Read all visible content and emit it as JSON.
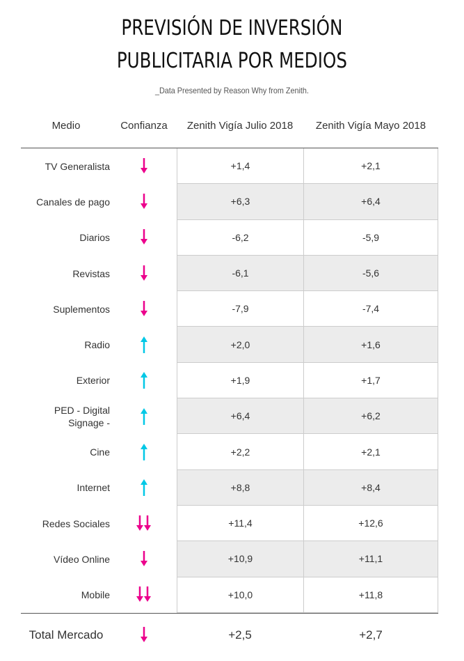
{
  "header": {
    "title_line1": "PREVISIÓN DE INVERSIÓN",
    "title_line2": "PUBLICITARIA POR MEDIOS",
    "subtitle": "_Data Presented by Reason Why from Zenith."
  },
  "columns": {
    "medio": "Medio",
    "confianza": "Confianza",
    "julio": "Zenith Vigía Julio 2018",
    "mayo": "Zenith Vigía Mayo 2018"
  },
  "colors": {
    "down": "#ec008c",
    "up": "#00c8e6"
  },
  "rows": [
    {
      "medio": "TV Generalista",
      "confianza": "down-arrow-icon",
      "julio": "+1,4",
      "mayo": "+2,1"
    },
    {
      "medio": "Canales de pago",
      "confianza": "down-arrow-icon",
      "julio": "+6,3",
      "mayo": "+6,4"
    },
    {
      "medio": "Diarios",
      "confianza": "down-arrow-icon",
      "julio": "-6,2",
      "mayo": "-5,9"
    },
    {
      "medio": "Revistas",
      "confianza": "down-arrow-icon",
      "julio": "-6,1",
      "mayo": "-5,6"
    },
    {
      "medio": "Suplementos",
      "confianza": "down-arrow-icon",
      "julio": "-7,9",
      "mayo": "-7,4"
    },
    {
      "medio": "Radio",
      "confianza": "up-arrow-icon",
      "julio": "+2,0",
      "mayo": "+1,6"
    },
    {
      "medio": "Exterior",
      "confianza": "up-arrow-icon",
      "julio": "+1,9",
      "mayo": "+1,7"
    },
    {
      "medio": "PED - Digital Signage -",
      "confianza": "up-arrow-icon",
      "julio": "+6,4",
      "mayo": "+6,2"
    },
    {
      "medio": "Cine",
      "confianza": "up-arrow-icon",
      "julio": "+2,2",
      "mayo": "+2,1"
    },
    {
      "medio": "Internet",
      "confianza": "up-arrow-icon",
      "julio": "+8,8",
      "mayo": "+8,4"
    },
    {
      "medio": "Redes Sociales",
      "confianza": "double-down-arrow-icon",
      "julio": "+11,4",
      "mayo": "+12,6"
    },
    {
      "medio": "Vídeo Online",
      "confianza": "down-arrow-icon",
      "julio": "+10,9",
      "mayo": "+11,1"
    },
    {
      "medio": "Mobile",
      "confianza": "double-down-arrow-icon",
      "julio": "+10,0",
      "mayo": "+11,8"
    }
  ],
  "total": {
    "medio": "Total Mercado",
    "confianza": "down-arrow-icon",
    "julio": "+2,5",
    "mayo": "+2,7"
  }
}
